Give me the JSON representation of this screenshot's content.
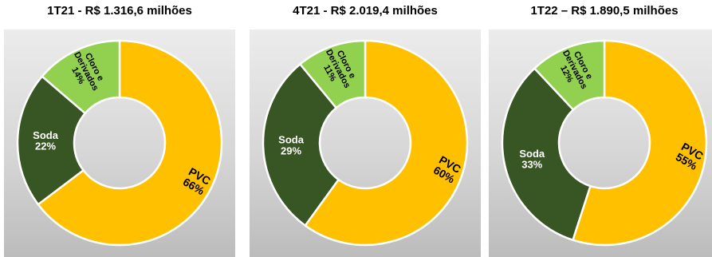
{
  "chart_data": [
    {
      "type": "pie",
      "title": "1T21 - R$ 1.316,6 milhões",
      "categories": [
        "PVC",
        "Soda",
        "Cloro e Derivados"
      ],
      "values": [
        66,
        22,
        14
      ],
      "labels": [
        "66%",
        "22%",
        "14%"
      ]
    },
    {
      "type": "pie",
      "title": "4T21 - R$ 2.019,4 milhões",
      "categories": [
        "PVC",
        "Soda",
        "Cloro e Derivados"
      ],
      "values": [
        60,
        29,
        11
      ],
      "labels": [
        "60%",
        "29%",
        "11%"
      ]
    },
    {
      "type": "pie",
      "title": "1T22 – R$ 1.890,5 milhões",
      "categories": [
        "PVC",
        "Soda",
        "Cloro e Derivados"
      ],
      "values": [
        55,
        33,
        12
      ],
      "labels": [
        "55%",
        "33%",
        "12%"
      ]
    }
  ],
  "colors": {
    "PVC": "#FFC000",
    "Soda": "#375623",
    "Cloro e Derivados": "#92D050"
  },
  "label_colors": {
    "PVC": "#000000",
    "Soda": "#ffffff",
    "Cloro e Derivados": "#000000"
  },
  "category_display": {
    "Cloro e Derivados": [
      "Cloro e",
      "Derivados"
    ]
  }
}
